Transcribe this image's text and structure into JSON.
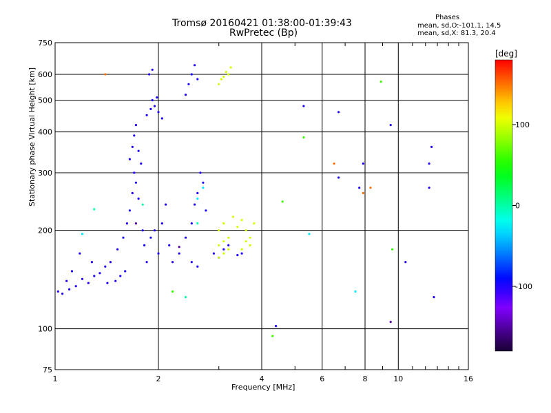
{
  "chart_data": {
    "type": "scatter",
    "title": "Tromsø 20160421 01:38:00-01:39:43",
    "subtitle": "RwPretec (Bp)",
    "legend_title": "Phases",
    "legend_lines": [
      "mean, sd,O:-101.1, 14.5",
      "mean, sd,X:  81.3, 20.4"
    ],
    "xlabel": "Frequency [MHz]",
    "ylabel": "Stationary phase Virtual Height [km]",
    "xscale": "log",
    "yscale": "log",
    "xlim": [
      1,
      16
    ],
    "ylim": [
      75,
      750
    ],
    "x_ticks": [
      1,
      2,
      4,
      6,
      8,
      10,
      16
    ],
    "x_tick_labels": [
      "1",
      "2",
      "4",
      "6",
      "8",
      "10",
      "16"
    ],
    "y_ticks": [
      75,
      100,
      200,
      300,
      400,
      500,
      600,
      750
    ],
    "y_tick_labels": [
      "75",
      "100",
      "200",
      "300",
      "400",
      "500",
      "600",
      "750"
    ],
    "grid": true,
    "colorbar": {
      "label": "[deg]",
      "range": [
        -180,
        180
      ],
      "tick_values": [
        100,
        0,
        -100
      ],
      "tick_labels": [
        "100",
        "0",
        "-100"
      ]
    },
    "series": [
      {
        "phase": -100,
        "points": [
          [
            1.02,
            130
          ],
          [
            1.05,
            128
          ],
          [
            1.08,
            140
          ],
          [
            1.1,
            132
          ],
          [
            1.12,
            150
          ],
          [
            1.15,
            135
          ],
          [
            1.18,
            170
          ],
          [
            1.2,
            142
          ],
          [
            1.25,
            138
          ],
          [
            1.28,
            160
          ],
          [
            1.3,
            145
          ],
          [
            1.35,
            148
          ],
          [
            1.4,
            155
          ],
          [
            1.42,
            138
          ],
          [
            1.45,
            160
          ],
          [
            1.5,
            140
          ],
          [
            1.52,
            175
          ],
          [
            1.55,
            145
          ],
          [
            1.58,
            190
          ],
          [
            1.6,
            150
          ],
          [
            1.62,
            210
          ],
          [
            1.65,
            230
          ],
          [
            1.68,
            260
          ],
          [
            1.7,
            300
          ],
          [
            1.72,
            280
          ],
          [
            1.75,
            250
          ],
          [
            1.78,
            320
          ],
          [
            1.8,
            200
          ],
          [
            1.82,
            180
          ],
          [
            1.85,
            160
          ],
          [
            1.9,
            190
          ],
          [
            1.95,
            200
          ],
          [
            2.0,
            170
          ],
          [
            2.05,
            210
          ],
          [
            2.1,
            240
          ],
          [
            2.15,
            180
          ],
          [
            2.2,
            160
          ],
          [
            2.3,
            170
          ],
          [
            2.4,
            190
          ],
          [
            2.5,
            210
          ],
          [
            2.55,
            240
          ],
          [
            2.6,
            260
          ],
          [
            2.65,
            300
          ],
          [
            2.7,
            280
          ],
          [
            2.75,
            230
          ],
          [
            2.5,
            160
          ],
          [
            2.6,
            155
          ],
          [
            1.65,
            330
          ],
          [
            1.68,
            360
          ],
          [
            1.7,
            390
          ],
          [
            1.72,
            420
          ],
          [
            1.75,
            350
          ],
          [
            1.85,
            450
          ],
          [
            1.9,
            470
          ],
          [
            1.95,
            480
          ],
          [
            2.0,
            460
          ],
          [
            2.05,
            440
          ],
          [
            1.92,
            500
          ],
          [
            1.98,
            510
          ],
          [
            1.88,
            600
          ],
          [
            1.92,
            620
          ],
          [
            2.4,
            520
          ],
          [
            2.45,
            560
          ],
          [
            2.5,
            600
          ],
          [
            2.55,
            640
          ],
          [
            2.6,
            580
          ],
          [
            2.9,
            170
          ],
          [
            3.0,
            165
          ],
          [
            3.1,
            175
          ],
          [
            3.2,
            180
          ],
          [
            3.4,
            168
          ],
          [
            3.5,
            170
          ],
          [
            4.4,
            102
          ],
          [
            5.3,
            480
          ],
          [
            6.7,
            460
          ],
          [
            6.7,
            290
          ],
          [
            7.9,
            320
          ],
          [
            7.7,
            270
          ],
          [
            9.5,
            420
          ],
          [
            10.5,
            160
          ],
          [
            12.5,
            360
          ],
          [
            12.3,
            320
          ],
          [
            12.3,
            270
          ],
          [
            12.7,
            125
          ]
        ]
      },
      {
        "phase": 100,
        "points": [
          [
            3.1,
            590
          ],
          [
            3.15,
            610
          ],
          [
            3.2,
            600
          ],
          [
            3.25,
            630
          ],
          [
            3.0,
            560
          ],
          [
            3.05,
            580
          ],
          [
            3.0,
            200
          ],
          [
            3.1,
            210
          ],
          [
            3.2,
            190
          ],
          [
            3.3,
            220
          ],
          [
            3.4,
            205
          ],
          [
            3.5,
            215
          ],
          [
            3.6,
            200
          ],
          [
            3.7,
            190
          ],
          [
            3.8,
            210
          ],
          [
            3.0,
            180
          ],
          [
            3.1,
            185
          ],
          [
            3.2,
            175
          ],
          [
            3.0,
            165
          ],
          [
            3.1,
            170
          ],
          [
            3.5,
            175
          ],
          [
            3.6,
            185
          ],
          [
            3.7,
            180
          ]
        ]
      },
      {
        "phase": -150,
        "points": [
          [
            9.5,
            105
          ],
          [
            1.72,
            210
          ],
          [
            2.3,
            178
          ]
        ]
      },
      {
        "phase": 150,
        "points": [
          [
            1.4,
            600
          ],
          [
            6.5,
            320
          ],
          [
            8.3,
            270
          ],
          [
            7.9,
            260
          ]
        ]
      },
      {
        "phase": 0,
        "points": [
          [
            1.3,
            232
          ],
          [
            2.4,
            125
          ],
          [
            1.8,
            240
          ],
          [
            2.6,
            210
          ]
        ]
      },
      {
        "phase": -30,
        "points": [
          [
            1.2,
            195
          ],
          [
            2.7,
            270
          ],
          [
            2.6,
            250
          ],
          [
            7.5,
            130
          ],
          [
            5.5,
            195
          ]
        ]
      },
      {
        "phase": 60,
        "points": [
          [
            2.2,
            130
          ],
          [
            5.3,
            385
          ],
          [
            4.6,
            245
          ],
          [
            9.6,
            175
          ],
          [
            8.9,
            570
          ],
          [
            4.3,
            95
          ]
        ]
      }
    ]
  }
}
